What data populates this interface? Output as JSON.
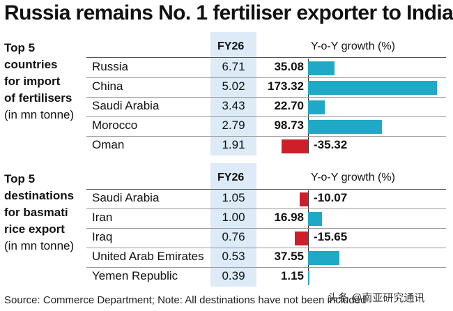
{
  "title": "Russia remains No. 1 fertiliser exporter to India",
  "footer": "Source: Commerce Department; Note: All destinations have not been included",
  "watermark": "头条 @南亚研究通讯",
  "colors": {
    "positive": "#20a9c6",
    "negative": "#cc1f2a",
    "band": "#dcebf7"
  },
  "chart_data": [
    {
      "type": "table",
      "label_lines": [
        "Top 5",
        "countries",
        "for import",
        "of fertilisers",
        "(in mn tonne)"
      ],
      "value_header": "FY26",
      "growth_header": "Y-o-Y growth (%)",
      "categories": [
        "Russia",
        "China",
        "Saudi Arabia",
        "Morocco",
        "Oman"
      ],
      "values": [
        6.71,
        5.02,
        3.43,
        2.79,
        1.91
      ],
      "growth": [
        35.08,
        173.32,
        22.7,
        98.73,
        -35.32
      ],
      "growth_labels": [
        "35.08",
        "173.32",
        "22.70",
        "98.73",
        "-35.32"
      ]
    },
    {
      "type": "table",
      "label_lines": [
        "Top 5",
        "destinations",
        "for basmati",
        "rice export",
        "(in mn tonne)"
      ],
      "value_header": "FY26",
      "growth_header": "Y-o-Y growth (%)",
      "categories": [
        "Saudi Arabia",
        "Iran",
        "Iraq",
        "United Arab Emirates",
        "Yemen Republic"
      ],
      "values": [
        1.05,
        1.0,
        0.76,
        0.53,
        0.39
      ],
      "value_labels": [
        "1.05",
        "1.00",
        "0.76",
        "0.53",
        "0.39"
      ],
      "growth": [
        -10.07,
        16.98,
        -15.65,
        37.55,
        1.15
      ],
      "growth_labels": [
        "-10.07",
        "16.98",
        "-15.65",
        "37.55",
        "1.15"
      ]
    }
  ]
}
